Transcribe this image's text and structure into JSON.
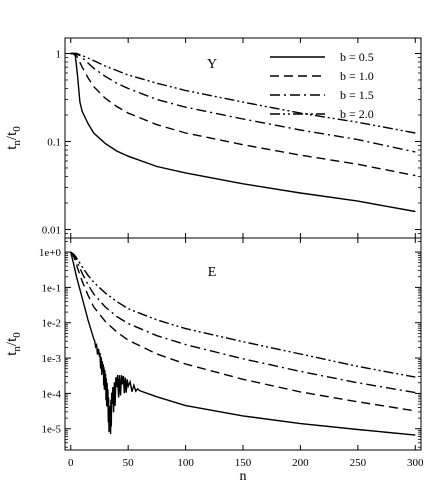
{
  "chart_data": [
    {
      "type": "line",
      "panel_label": "Y",
      "ylabel": "t",
      "ylabel_sub1": "n",
      "ylabel_mid": "/t",
      "ylabel_sub2": "0",
      "xlim": [
        -5,
        305
      ],
      "ylim": [
        0.008,
        1.5
      ],
      "yscale": "log",
      "x_ticks": [
        0,
        50,
        100,
        150,
        200,
        250,
        300
      ],
      "y_ticks": [
        {
          "value": 1,
          "label": "1"
        },
        {
          "value": 0.1,
          "label": "0.1"
        },
        {
          "value": 0.01,
          "label": "0.01"
        }
      ],
      "legend_position": "top-right",
      "series": [
        {
          "name": "b = 0.5",
          "dash": "solid",
          "points": [
            [
              0,
              1
            ],
            [
              2,
              1
            ],
            [
              4,
              0.95
            ],
            [
              6,
              0.55
            ],
            [
              8,
              0.28
            ],
            [
              10,
              0.22
            ],
            [
              15,
              0.16
            ],
            [
              20,
              0.125
            ],
            [
              30,
              0.095
            ],
            [
              40,
              0.078
            ],
            [
              50,
              0.068
            ],
            [
              75,
              0.052
            ],
            [
              100,
              0.044
            ],
            [
              150,
              0.033
            ],
            [
              200,
              0.026
            ],
            [
              250,
              0.021
            ],
            [
              300,
              0.016
            ]
          ]
        },
        {
          "name": "b = 1.0",
          "dash": "dash",
          "points": [
            [
              0,
              1
            ],
            [
              3,
              1
            ],
            [
              5,
              0.95
            ],
            [
              10,
              0.7
            ],
            [
              15,
              0.53
            ],
            [
              20,
              0.42
            ],
            [
              30,
              0.31
            ],
            [
              40,
              0.25
            ],
            [
              50,
              0.21
            ],
            [
              75,
              0.155
            ],
            [
              100,
              0.125
            ],
            [
              150,
              0.092
            ],
            [
              200,
              0.07
            ],
            [
              250,
              0.055
            ],
            [
              300,
              0.041
            ]
          ]
        },
        {
          "name": "b = 1.5",
          "dash": "dashdot",
          "points": [
            [
              0,
              1
            ],
            [
              4,
              1
            ],
            [
              8,
              0.95
            ],
            [
              15,
              0.78
            ],
            [
              20,
              0.68
            ],
            [
              30,
              0.55
            ],
            [
              40,
              0.46
            ],
            [
              50,
              0.4
            ],
            [
              75,
              0.3
            ],
            [
              100,
              0.245
            ],
            [
              150,
              0.18
            ],
            [
              200,
              0.135
            ],
            [
              250,
              0.105
            ],
            [
              300,
              0.076
            ]
          ]
        },
        {
          "name": "b = 2.0",
          "dash": "dashdotdot",
          "points": [
            [
              0,
              1
            ],
            [
              5,
              1
            ],
            [
              10,
              0.95
            ],
            [
              20,
              0.83
            ],
            [
              30,
              0.72
            ],
            [
              40,
              0.64
            ],
            [
              50,
              0.57
            ],
            [
              75,
              0.46
            ],
            [
              100,
              0.38
            ],
            [
              150,
              0.28
            ],
            [
              200,
              0.21
            ],
            [
              250,
              0.165
            ],
            [
              300,
              0.125
            ]
          ]
        }
      ]
    },
    {
      "type": "line",
      "panel_label": "E",
      "xlabel": "n",
      "ylabel": "t",
      "ylabel_sub1": "n",
      "ylabel_mid": "/t",
      "ylabel_sub2": "0",
      "xlim": [
        -5,
        305
      ],
      "ylim": [
        2.5e-06,
        2.5
      ],
      "yscale": "log",
      "x_ticks": [
        0,
        50,
        100,
        150,
        200,
        250,
        300
      ],
      "y_ticks": [
        {
          "value": 1,
          "label": "1e+0"
        },
        {
          "value": 0.1,
          "label": "1e-1"
        },
        {
          "value": 0.01,
          "label": "1e-2"
        },
        {
          "value": 0.001,
          "label": "1e-3"
        },
        {
          "value": 0.0001,
          "label": "1e-4"
        },
        {
          "value": 1e-05,
          "label": "1e-5"
        }
      ],
      "series": [
        {
          "name": "b = 0.5",
          "dash": "solid",
          "points": [
            [
              0,
              1
            ],
            [
              2,
              0.55
            ],
            [
              5,
              0.2
            ],
            [
              10,
              0.05
            ],
            [
              15,
              0.012
            ],
            [
              20,
              0.0035
            ],
            [
              25,
              0.0011
            ],
            [
              28,
              0.0004
            ],
            [
              30,
              0.0002
            ],
            [
              32,
              7e-05
            ],
            [
              34,
              1.2e-05
            ],
            [
              36,
              5e-05
            ],
            [
              40,
              0.00015
            ],
            [
              45,
              0.00018
            ],
            [
              50,
              0.00016
            ],
            [
              60,
              0.00012
            ],
            [
              75,
              8e-05
            ],
            [
              100,
              4.5e-05
            ],
            [
              150,
              2.3e-05
            ],
            [
              200,
              1.4e-05
            ],
            [
              250,
              9.5e-06
            ],
            [
              300,
              6.6e-06
            ]
          ]
        },
        {
          "name": "b = 1.0",
          "dash": "dash",
          "points": [
            [
              0,
              1
            ],
            [
              3,
              0.7
            ],
            [
              6,
              0.35
            ],
            [
              10,
              0.15
            ],
            [
              15,
              0.06
            ],
            [
              20,
              0.028
            ],
            [
              30,
              0.011
            ],
            [
              40,
              0.0055
            ],
            [
              50,
              0.0032
            ],
            [
              75,
              0.0013
            ],
            [
              100,
              0.00068
            ],
            [
              150,
              0.00025
            ],
            [
              200,
              0.00011
            ],
            [
              250,
              5.8e-05
            ],
            [
              300,
              3.2e-05
            ]
          ]
        },
        {
          "name": "b = 1.5",
          "dash": "dashdot",
          "points": [
            [
              0,
              1
            ],
            [
              3,
              0.8
            ],
            [
              6,
              0.5
            ],
            [
              10,
              0.25
            ],
            [
              15,
              0.12
            ],
            [
              20,
              0.065
            ],
            [
              30,
              0.028
            ],
            [
              40,
              0.015
            ],
            [
              50,
              0.0095
            ],
            [
              75,
              0.0043
            ],
            [
              100,
              0.0024
            ],
            [
              150,
              0.00095
            ],
            [
              200,
              0.00042
            ],
            [
              250,
              0.0002
            ],
            [
              300,
              0.000105
            ]
          ]
        },
        {
          "name": "b = 2.0",
          "dash": "dashdotdot",
          "points": [
            [
              0,
              1
            ],
            [
              3,
              0.85
            ],
            [
              6,
              0.62
            ],
            [
              10,
              0.38
            ],
            [
              15,
              0.22
            ],
            [
              20,
              0.14
            ],
            [
              30,
              0.07
            ],
            [
              40,
              0.04
            ],
            [
              50,
              0.025
            ],
            [
              75,
              0.012
            ],
            [
              100,
              0.0068
            ],
            [
              150,
              0.0029
            ],
            [
              200,
              0.0013
            ],
            [
              250,
              0.00058
            ],
            [
              300,
              0.00029
            ]
          ]
        }
      ]
    }
  ]
}
